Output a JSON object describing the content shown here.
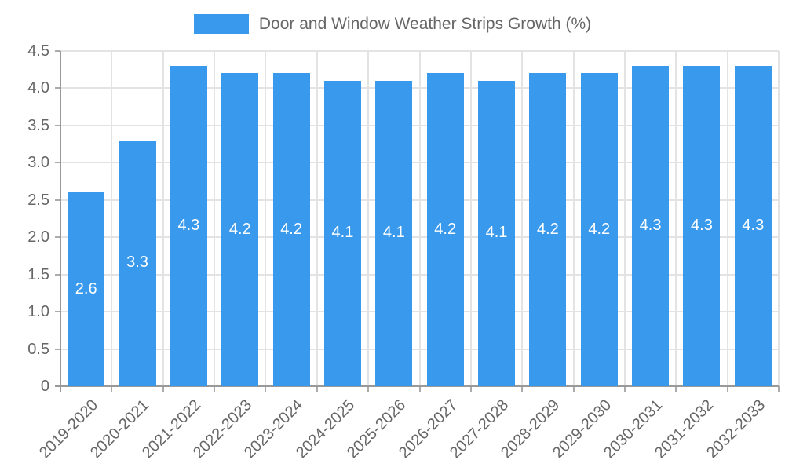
{
  "chart_data": {
    "type": "bar",
    "title": "Door and Window Weather Strips Growth (%)",
    "categories": [
      "2019-2020",
      "2020-2021",
      "2021-2022",
      "2022-2023",
      "2023-2024",
      "2024-2025",
      "2025-2026",
      "2026-2027",
      "2027-2028",
      "2028-2029",
      "2029-2030",
      "2030-2031",
      "2031-2032",
      "2032-2033"
    ],
    "values": [
      2.6,
      3.3,
      4.3,
      4.2,
      4.2,
      4.1,
      4.1,
      4.2,
      4.1,
      4.2,
      4.2,
      4.3,
      4.3,
      4.3
    ],
    "bar_labels": [
      "2.6",
      "3.3",
      "4.3",
      "4.2",
      "4.2",
      "4.1",
      "4.1",
      "4.2",
      "4.1",
      "4.2",
      "4.2",
      "4.3",
      "4.3",
      "4.3"
    ],
    "xlabel": "",
    "ylabel": "",
    "ylim": [
      0,
      4.5
    ],
    "ytick_step": 0.5,
    "ytick_labels": [
      "0",
      "0.5",
      "1.0",
      "1.5",
      "2.0",
      "2.5",
      "3.0",
      "3.5",
      "4.0",
      "4.5"
    ],
    "grid": true,
    "legend_position": "top-center",
    "colors": {
      "bar": "#3999ec",
      "bar_value_text": "#ffffff",
      "axis_line": "#999999",
      "gridline": "#e3e3e3",
      "tick_mark": "#ababab",
      "tick_text": "#666666",
      "legend_text": "#666666",
      "background": "#ffffff"
    }
  }
}
